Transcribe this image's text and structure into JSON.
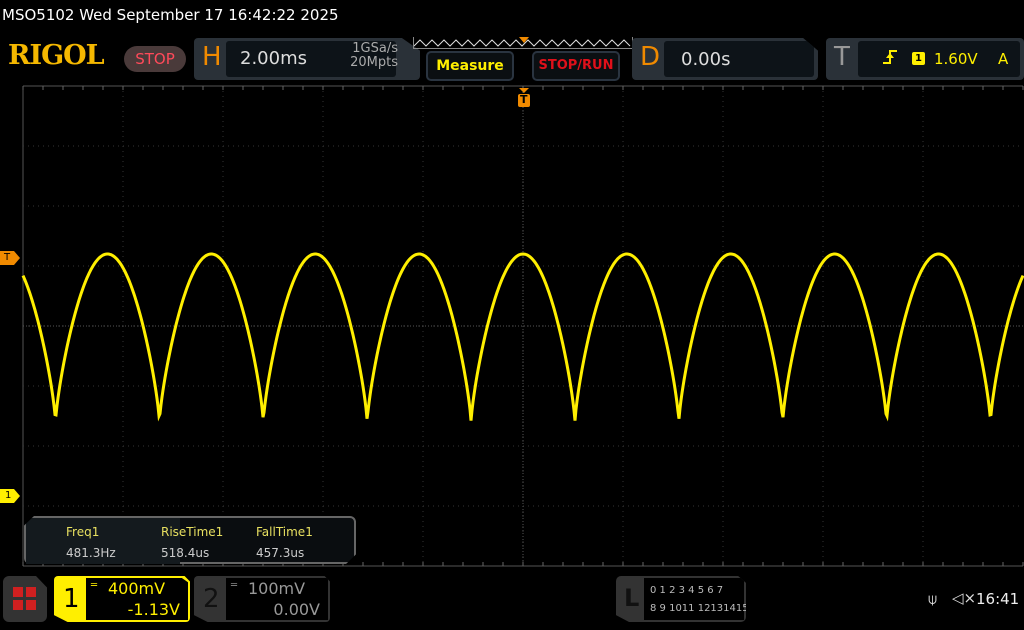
{
  "header": {
    "title": "MSO5102  Wed September 17 16:42:22 2025",
    "logo": "RIGOL",
    "run_state": "STOP"
  },
  "horizontal": {
    "label": "H",
    "timebase": "2.00ms",
    "sample_rate": "1GSa/s",
    "memory_depth": "20Mpts"
  },
  "buttons": {
    "measure": "Measure",
    "stop_run": "STOP/RUN"
  },
  "delay": {
    "label": "D",
    "value": "0.00s"
  },
  "trigger": {
    "label": "T",
    "slope_icon": "rising-edge-icon",
    "source": "1",
    "level": "1.60V",
    "mode": "A",
    "marker": "T"
  },
  "waveform": {
    "channel": "1",
    "color": "#ffef00",
    "frequency_hz": 481.3,
    "max_v": 1.61,
    "min_v": 0.49,
    "time_per_div_ms": 2.0,
    "volts_per_div": 0.4,
    "offset_v": -1.13
  },
  "measurements": [
    {
      "name": "Freq1",
      "value": "481.3Hz"
    },
    {
      "name": "RiseTime1",
      "value": "518.4us"
    },
    {
      "name": "FallTime1",
      "value": "457.3us"
    }
  ],
  "channels": [
    {
      "num": "1",
      "scale": "400mV",
      "offset": "-1.13V",
      "color": "#ffef00",
      "coupling_icon": "dc-coupling-icon"
    },
    {
      "num": "2",
      "scale": "100mV",
      "offset": "0.00V",
      "color": "#888888",
      "coupling_icon": "dc-coupling-icon"
    }
  ],
  "logic": {
    "label": "L",
    "row1": "0 1 2 3  4 5 6 7",
    "row2": "8 9 1011 12131415"
  },
  "status": {
    "usb_icon": "usb-icon",
    "mute_icon": "speaker-muted-icon",
    "time": "16:41"
  },
  "markers": {
    "ch1_ground": "1",
    "trigger_level": "T"
  }
}
